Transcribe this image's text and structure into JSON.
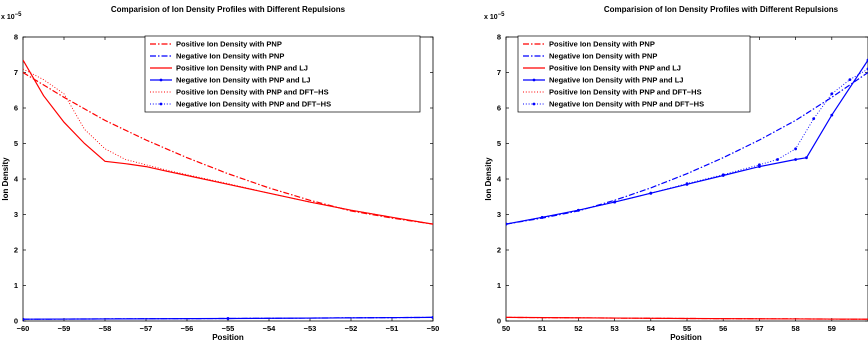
{
  "chart_data": [
    {
      "type": "line",
      "title": "Comparision of Ion Density Profiles with Different Repulsions",
      "xlabel": "Position",
      "ylabel": "Ion Density",
      "y_multiplier": "x 10",
      "y_exponent": "−5",
      "xlim": [
        -60,
        -50
      ],
      "ylim": [
        0,
        8
      ],
      "xticks": [
        "−60",
        "−59",
        "−58",
        "−57",
        "−56",
        "−55",
        "−54",
        "−53",
        "−52",
        "−51",
        "−50"
      ],
      "yticks": [
        "0",
        "1",
        "2",
        "3",
        "4",
        "5",
        "6",
        "7",
        "8"
      ],
      "grid": false,
      "legend_position": "top-right",
      "series": [
        {
          "name": "Positive Ion Density with PNP",
          "color": "#ff0000",
          "style": "dashdot",
          "marker": "none",
          "x": [
            -60,
            -59,
            -58,
            -57,
            -56,
            -55,
            -54,
            -53,
            -52,
            -51,
            -50
          ],
          "y": [
            7.0,
            6.3,
            5.65,
            5.1,
            4.6,
            4.15,
            3.75,
            3.4,
            3.1,
            2.9,
            2.73
          ]
        },
        {
          "name": "Negative Ion Density with PNP",
          "color": "#0000ff",
          "style": "dashdot",
          "marker": "none",
          "x": [
            -60,
            -55,
            -50
          ],
          "y": [
            0.05,
            0.07,
            0.1
          ]
        },
        {
          "name": "Positive Ion Density with PNP and LJ",
          "color": "#ff0000",
          "style": "solid",
          "marker": "none",
          "x": [
            -60,
            -59.5,
            -59,
            -58.5,
            -58,
            -57.5,
            -57,
            -56.5,
            -56,
            -55,
            -54,
            -53,
            -52,
            -51,
            -50
          ],
          "y": [
            7.35,
            6.35,
            5.6,
            5.0,
            4.5,
            4.43,
            4.35,
            4.22,
            4.1,
            3.85,
            3.6,
            3.35,
            3.12,
            2.92,
            2.73
          ]
        },
        {
          "name": "Negative Ion Density with PNP and LJ",
          "color": "#0000ff",
          "style": "solid",
          "marker": "dot",
          "x": [
            -60,
            -55,
            -50
          ],
          "y": [
            0.05,
            0.07,
            0.1
          ]
        },
        {
          "name": "Positive Ion Density with PNP and DFT−HS",
          "color": "#ff0000",
          "style": "dotted",
          "marker": "none",
          "x": [
            -60,
            -59.5,
            -59,
            -58.5,
            -58,
            -57.5,
            -57,
            -56.5,
            -56,
            -55,
            -54,
            -53,
            -52,
            -51,
            -50
          ],
          "y": [
            7.1,
            6.8,
            6.4,
            5.4,
            4.85,
            4.55,
            4.4,
            4.25,
            4.12,
            3.87,
            3.6,
            3.35,
            3.12,
            2.92,
            2.73
          ]
        },
        {
          "name": "Negative Ion Density with PNP and DFT−HS",
          "color": "#0000ff",
          "style": "dotted",
          "marker": "dot",
          "x": [
            -60,
            -55,
            -50
          ],
          "y": [
            0.05,
            0.07,
            0.1
          ]
        }
      ]
    },
    {
      "type": "line",
      "title": "Comparision of Ion Density Profiles with Different Repulsions",
      "xlabel": "Position",
      "ylabel": "Ion Density",
      "y_multiplier": "x 10",
      "y_exponent": "−5",
      "xlim": [
        50,
        60
      ],
      "ylim": [
        0,
        8
      ],
      "xticks": [
        "50",
        "51",
        "52",
        "53",
        "54",
        "55",
        "56",
        "57",
        "58",
        "59"
      ],
      "yticks": [
        "0",
        "1",
        "2",
        "3",
        "4",
        "5",
        "6",
        "7",
        "8"
      ],
      "grid": false,
      "legend_position": "top-left",
      "series": [
        {
          "name": "Positive Ion Density with PNP",
          "color": "#ff0000",
          "style": "dashdot",
          "marker": "none",
          "x": [
            50,
            55,
            60
          ],
          "y": [
            0.1,
            0.07,
            0.05
          ]
        },
        {
          "name": "Negative Ion Density with PNP",
          "color": "#0000ff",
          "style": "dashdot",
          "marker": "none",
          "x": [
            50,
            51,
            52,
            53,
            54,
            55,
            56,
            57,
            58,
            59,
            60
          ],
          "y": [
            2.73,
            2.9,
            3.1,
            3.4,
            3.75,
            4.15,
            4.6,
            5.1,
            5.65,
            6.3,
            7.0
          ]
        },
        {
          "name": "Positive Ion Density with PNP and LJ",
          "color": "#ff0000",
          "style": "solid",
          "marker": "none",
          "x": [
            50,
            55,
            60
          ],
          "y": [
            0.1,
            0.07,
            0.05
          ]
        },
        {
          "name": "Negative Ion Density with PNP and LJ",
          "color": "#0000ff",
          "style": "solid",
          "marker": "dot",
          "x": [
            50,
            51,
            52,
            53,
            54,
            55,
            56,
            57,
            58,
            58.3,
            59,
            60
          ],
          "y": [
            2.73,
            2.92,
            3.12,
            3.35,
            3.6,
            3.85,
            4.1,
            4.35,
            4.55,
            4.6,
            5.8,
            7.35
          ]
        },
        {
          "name": "Positive Ion Density with PNP and DFT−HS",
          "color": "#ff0000",
          "style": "dotted",
          "marker": "none",
          "x": [
            50,
            55,
            60
          ],
          "y": [
            0.1,
            0.07,
            0.05
          ]
        },
        {
          "name": "Negative Ion Density with PNP and DFT−HS",
          "color": "#0000ff",
          "style": "dotted",
          "marker": "dot",
          "x": [
            50,
            51,
            52,
            53,
            54,
            55,
            56,
            57,
            57.5,
            58,
            58.5,
            59,
            59.5,
            60
          ],
          "y": [
            2.73,
            2.92,
            3.12,
            3.35,
            3.6,
            3.87,
            4.12,
            4.4,
            4.55,
            4.85,
            5.7,
            6.4,
            6.8,
            7.1
          ]
        }
      ]
    }
  ]
}
